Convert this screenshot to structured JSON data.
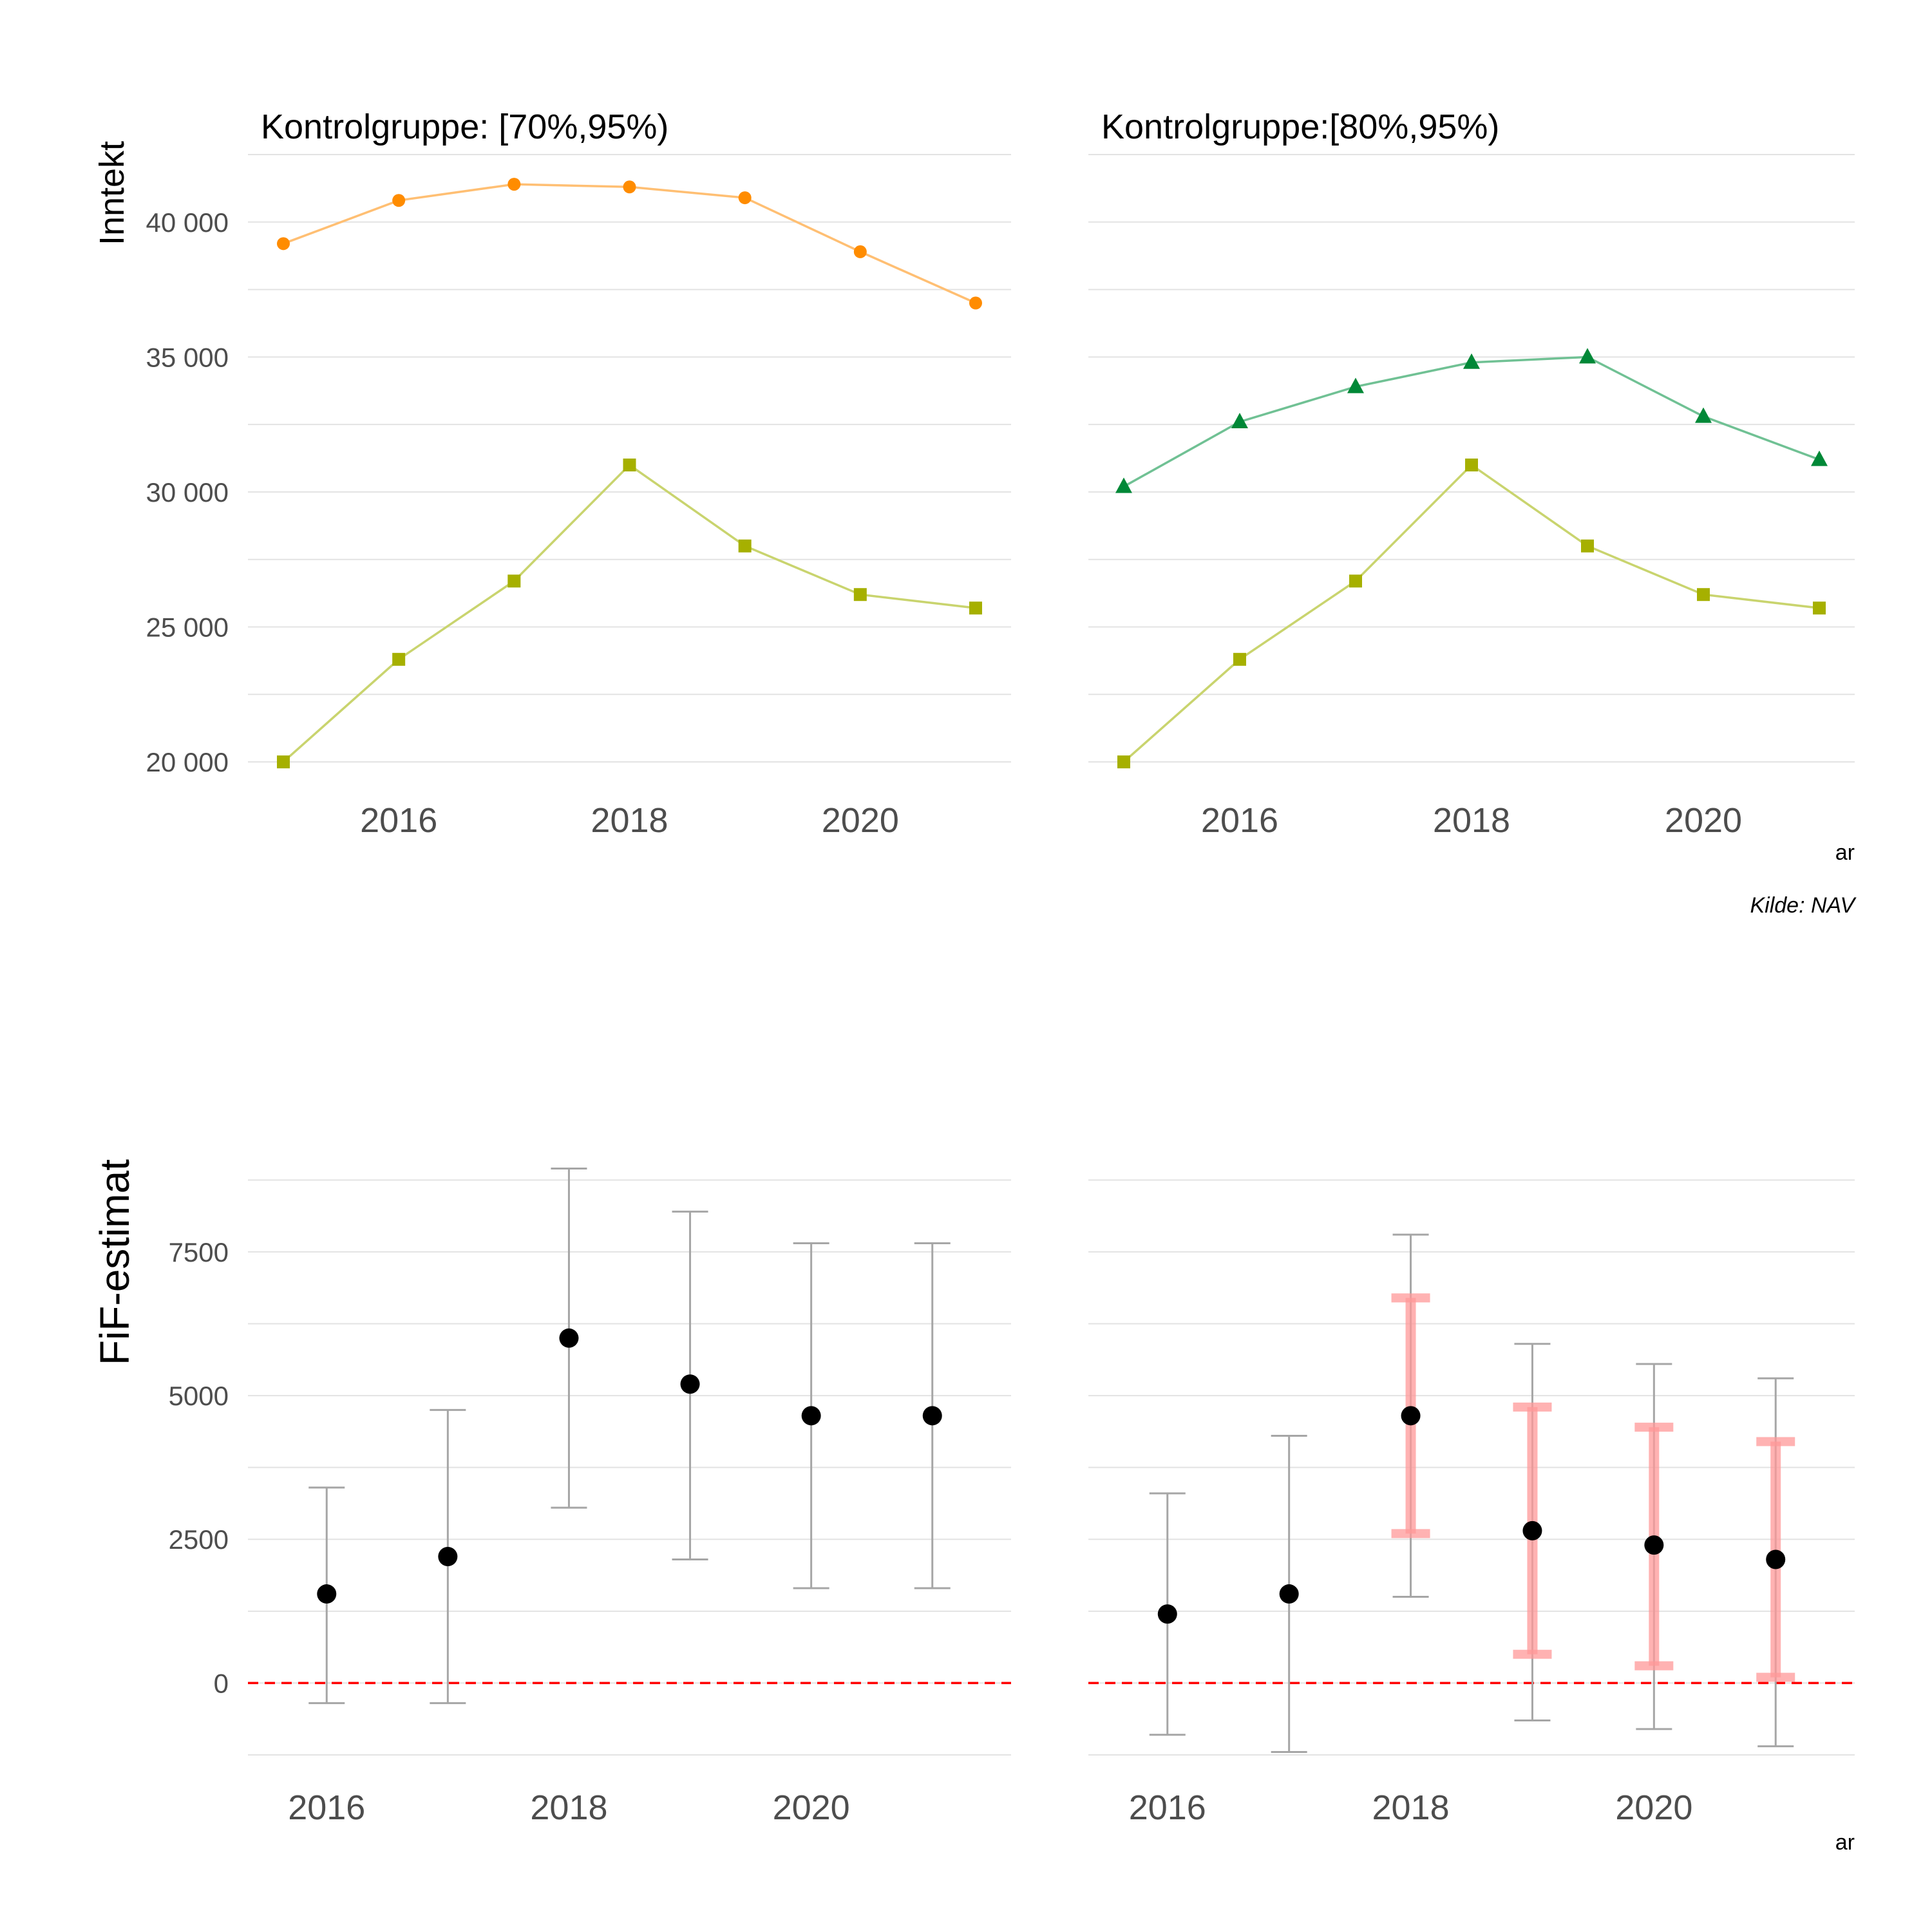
{
  "colors": {
    "orange": "#ff8c00",
    "orange_line": "#ffbf73",
    "olive": "#a6b000",
    "olive_line": "#c9d46e",
    "green": "#008837",
    "green_line": "#70c194",
    "error_bar": "#a6a6a6",
    "ci_band": "#ff9999",
    "zero_line": "#ff0000",
    "point": "#000000"
  },
  "caption": "Kilde: NAV",
  "chart_data": [
    {
      "type": "line",
      "title": "Kontrolgruppe: [70%,95%)",
      "ylabel": "Inntekt",
      "xlabel": "",
      "x": [
        2015,
        2016,
        2017,
        2018,
        2019,
        2020,
        2021
      ],
      "xticks": [
        2016,
        2018,
        2020
      ],
      "ylim": [
        19000,
        42500
      ],
      "yticks": [
        20000,
        25000,
        30000,
        35000,
        40000
      ],
      "ytick_labels": [
        "20 000",
        "25 000",
        "30 000",
        "35 000",
        "40 000"
      ],
      "grid": true,
      "series": [
        {
          "marker": "circle",
          "color_key": "orange",
          "values": [
            39200,
            40800,
            41400,
            41300,
            40900,
            38900,
            37000
          ]
        },
        {
          "marker": "square",
          "color_key": "olive",
          "values": [
            20000,
            23800,
            26700,
            31000,
            28000,
            26200,
            25700
          ]
        }
      ]
    },
    {
      "type": "line",
      "title": "Kontrolgruppe:[80%,95%)",
      "ylabel": "",
      "xlabel": "ar",
      "x": [
        2015,
        2016,
        2017,
        2018,
        2019,
        2020,
        2021
      ],
      "xticks": [
        2016,
        2018,
        2020
      ],
      "ylim": [
        19000,
        42500
      ],
      "yticks": [
        20000,
        25000,
        30000,
        35000,
        40000
      ],
      "grid": true,
      "series": [
        {
          "marker": "triangle",
          "color_key": "green",
          "values": [
            30200,
            32600,
            33900,
            34800,
            35000,
            32800,
            31200
          ]
        },
        {
          "marker": "square",
          "color_key": "olive",
          "values": [
            20000,
            23800,
            26700,
            31000,
            28000,
            26200,
            25700
          ]
        }
      ]
    },
    {
      "type": "scatter",
      "title": "",
      "ylabel": "FiF-estimat",
      "xlabel": "",
      "x": [
        2016,
        2017,
        2018,
        2019,
        2020,
        2021
      ],
      "xlim": [
        2015.35,
        2021.65
      ],
      "xticks": [
        2016,
        2018,
        2020
      ],
      "ylim": [
        -1250,
        9000
      ],
      "yticks": [
        0,
        2500,
        5000,
        7500
      ],
      "ytick_labels": [
        "0",
        "2500",
        "5000",
        "7500"
      ],
      "grid": true,
      "reference_line": 0,
      "estimates": [
        1550,
        2200,
        6000,
        5200,
        4650,
        4650
      ],
      "ci_low": [
        -350,
        -350,
        3050,
        2150,
        1650,
        1650
      ],
      "ci_high": [
        3400,
        4750,
        8950,
        8200,
        7650,
        7650
      ]
    },
    {
      "type": "scatter",
      "title": "",
      "ylabel": "",
      "xlabel": "ar",
      "x": [
        2016,
        2017,
        2018,
        2019,
        2020,
        2021
      ],
      "xlim": [
        2015.35,
        2021.65
      ],
      "xticks": [
        2016,
        2018,
        2020
      ],
      "ylim": [
        -1250,
        9000
      ],
      "yticks": [
        0,
        2500,
        5000,
        7500
      ],
      "grid": true,
      "reference_line": 0,
      "estimates": [
        1200,
        1550,
        4650,
        2650,
        2400,
        2150
      ],
      "ci_low": [
        -900,
        -1200,
        1500,
        -650,
        -800,
        -1100
      ],
      "ci_high": [
        3300,
        4300,
        7800,
        5900,
        5550,
        5300
      ],
      "band_low": [
        null,
        null,
        2600,
        500,
        300,
        100
      ],
      "band_high": [
        null,
        null,
        6700,
        4800,
        4450,
        4200
      ]
    }
  ]
}
